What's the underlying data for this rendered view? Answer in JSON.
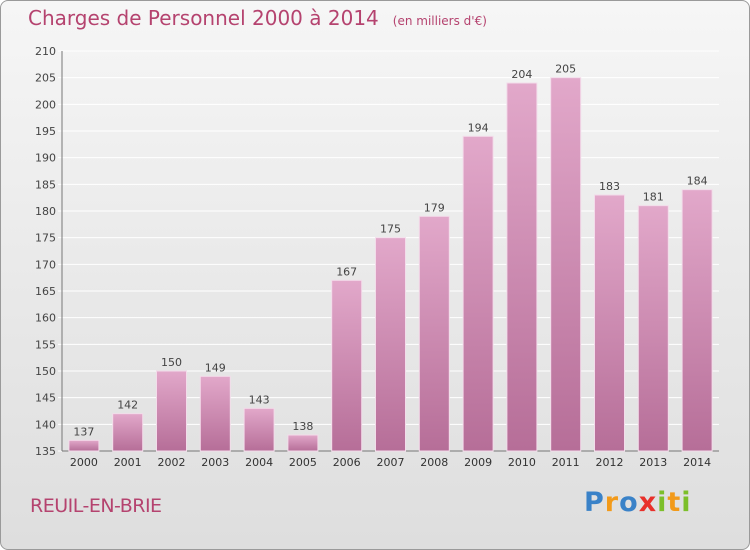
{
  "title": "Charges de Personnel 2000 à 2014",
  "subtitle": "(en milliers d'€)",
  "commune": "REUIL-EN-BRIE",
  "logo": {
    "letters": [
      "P",
      "r",
      "o",
      "x",
      "i",
      "t",
      "i"
    ],
    "colors": [
      "#3a82c8",
      "#f29a1a",
      "#3a82c8",
      "#e8302a",
      "#7cbf2a",
      "#f29a1a",
      "#7cbf2a"
    ]
  },
  "colors": {
    "bar_top": "#e2a8ca",
    "bar_bottom": "#b66e98",
    "text": "#b5436f"
  },
  "chart_data": {
    "type": "bar",
    "categories": [
      "2000",
      "2001",
      "2002",
      "2003",
      "2004",
      "2005",
      "2006",
      "2007",
      "2008",
      "2009",
      "2010",
      "2011",
      "2012",
      "2013",
      "2014"
    ],
    "values": [
      137,
      142,
      150,
      149,
      143,
      138,
      167,
      175,
      179,
      194,
      204,
      205,
      183,
      181,
      184
    ],
    "ylim": [
      135,
      210
    ],
    "yticks": [
      135,
      140,
      145,
      150,
      155,
      160,
      165,
      170,
      175,
      180,
      185,
      190,
      195,
      200,
      205,
      210
    ],
    "grid": true,
    "xlabel": "",
    "ylabel": ""
  }
}
